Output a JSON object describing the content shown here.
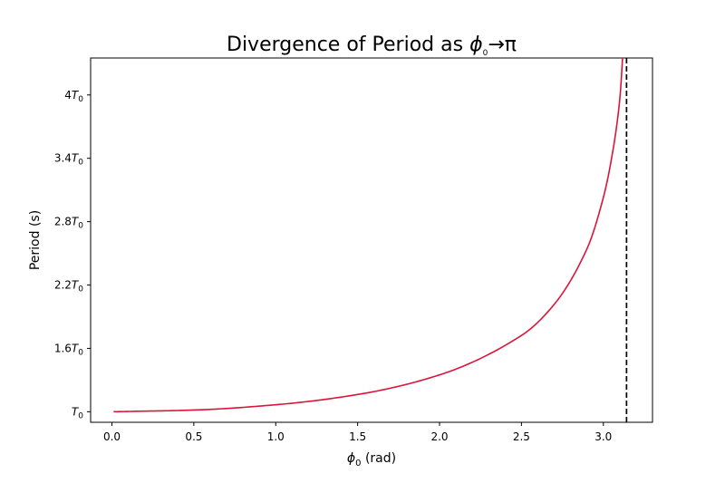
{
  "chart_data": {
    "type": "line",
    "title": "Divergence of Period as φ₀→π",
    "title_parts": {
      "prefix": "Divergence of Period as ",
      "var": "ϕ",
      "sub": "0",
      "suffix": "→π"
    },
    "xlabel": "ϕ₀ (rad)",
    "xlabel_parts": {
      "var": "ϕ",
      "sub": "0",
      "suffix": " (rad)"
    },
    "ylabel": "Period (s)",
    "xlim": [
      -0.13,
      3.3
    ],
    "ylim": [
      0.9,
      4.35
    ],
    "x_ticks": [
      0.0,
      0.5,
      1.0,
      1.5,
      2.0,
      2.5,
      3.0
    ],
    "x_tick_labels": [
      "0.0",
      "0.5",
      "1.0",
      "1.5",
      "2.0",
      "2.5",
      "3.0"
    ],
    "y_ticks": [
      1.0,
      1.6,
      2.2,
      2.8,
      3.4,
      4.0
    ],
    "y_tick_labels": [
      {
        "coef": "",
        "var": "T",
        "sub": "0"
      },
      {
        "coef": "1.6",
        "var": "T",
        "sub": "0"
      },
      {
        "coef": "2.2",
        "var": "T",
        "sub": "0"
      },
      {
        "coef": "2.8",
        "var": "T",
        "sub": "0"
      },
      {
        "coef": "3.4",
        "var": "T",
        "sub": "0"
      },
      {
        "coef": "4",
        "var": "T",
        "sub": "0"
      }
    ],
    "series": [
      {
        "color": "#dc143c",
        "x": [
          0.01,
          0.5,
          1.0,
          1.5,
          2.0,
          2.5,
          2.7,
          2.9,
          3.0,
          3.05,
          3.1,
          3.13
        ],
        "y": [
          1.0,
          1.016,
          1.066,
          1.163,
          1.349,
          1.722,
          2.017,
          2.543,
          3.029,
          3.399,
          3.956,
          4.7
        ]
      }
    ],
    "vline": {
      "x": 3.14159,
      "color": "#000000",
      "style": "dashed"
    },
    "grid": false,
    "legend": "none"
  }
}
